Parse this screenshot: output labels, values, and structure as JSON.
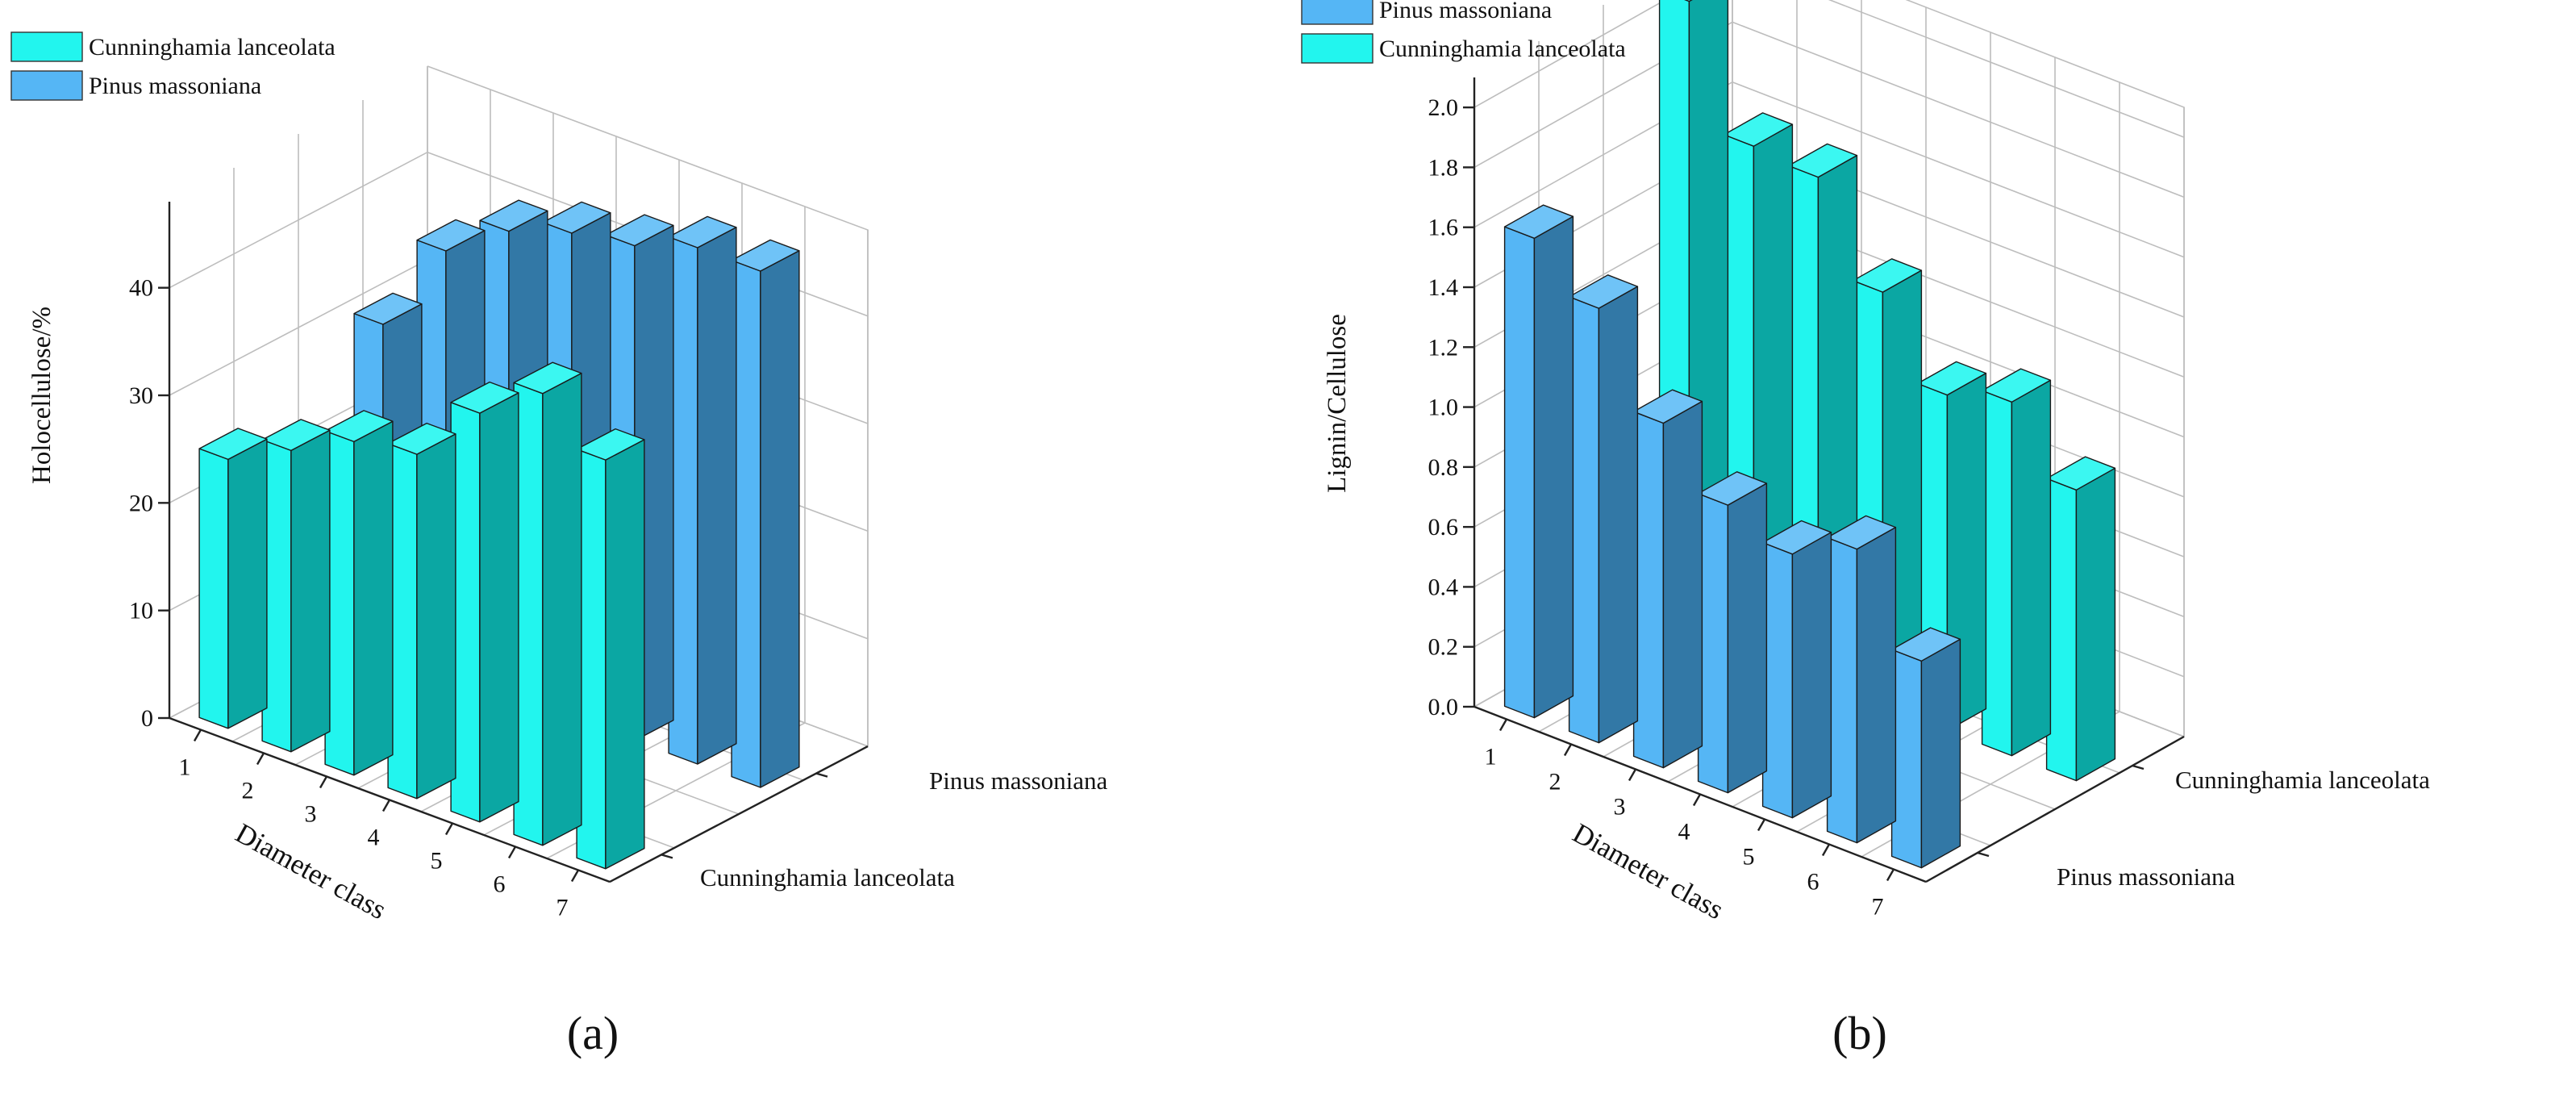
{
  "colors": {
    "pinus_front": "#55b6f5",
    "pinus_side": "#3278a6",
    "pinus_top": "#6fc3f7",
    "cunning_front": "#22f5ee",
    "cunning_side": "#0ba7a3",
    "cunning_top": "#3bf7f1",
    "grid": "#bdbdbd",
    "axis": "#222222"
  },
  "chart_data": [
    {
      "type": "bar3d",
      "panel_label": "(a)",
      "zlabel": "Holocellulose/%",
      "xlabel": "Diameter class",
      "zlim": [
        0,
        48
      ],
      "zticks": [
        "0",
        "10",
        "20",
        "30",
        "40"
      ],
      "zticks_values": [
        0,
        10,
        20,
        30,
        40
      ],
      "categories": [
        "1",
        "2",
        "3",
        "4",
        "5",
        "6",
        "7"
      ],
      "species_axis": [
        "Cunninghamia lanceolata",
        "Pinus massoniana"
      ],
      "legend": [
        "Cunninghamia lanceolata",
        "Pinus massoniana"
      ],
      "series": [
        {
          "name": "Cunninghamia lanceolata",
          "values": [
            25.0,
            28.0,
            31.0,
            32.0,
            38.0,
            42.0,
            38.0
          ]
        },
        {
          "name": "Pinus massoniana",
          "values": [
            30.0,
            39.0,
            43.0,
            45.0,
            46.0,
            48.0,
            48.0
          ]
        }
      ]
    },
    {
      "type": "bar3d",
      "panel_label": "(b)",
      "zlabel": "Lignin/Cellulose",
      "xlabel": "Diameter class",
      "zlim": [
        0,
        2.1
      ],
      "zticks": [
        "0.0",
        "0.2",
        "0.4",
        "0.6",
        "0.8",
        "1.0",
        "1.2",
        "1.4",
        "1.6",
        "1.8",
        "2.0"
      ],
      "zticks_values": [
        0,
        0.2,
        0.4,
        0.6,
        0.8,
        1.0,
        1.2,
        1.4,
        1.6,
        1.8,
        2.0
      ],
      "categories": [
        "1",
        "2",
        "3",
        "4",
        "5",
        "6",
        "7"
      ],
      "species_axis": [
        "Pinus massoniana",
        "Cunninghamia lanceolata"
      ],
      "legend": [
        "Pinus massoniana",
        "Cunninghamia lanceolata"
      ],
      "series": [
        {
          "name": "Pinus massoniana",
          "values": [
            1.6,
            1.45,
            1.15,
            0.96,
            0.88,
            0.98,
            0.69
          ]
        },
        {
          "name": "Cunninghamia lanceolata",
          "values": [
            2.1,
            1.7,
            1.68,
            1.38,
            1.12,
            1.18,
            0.97
          ]
        }
      ]
    }
  ]
}
